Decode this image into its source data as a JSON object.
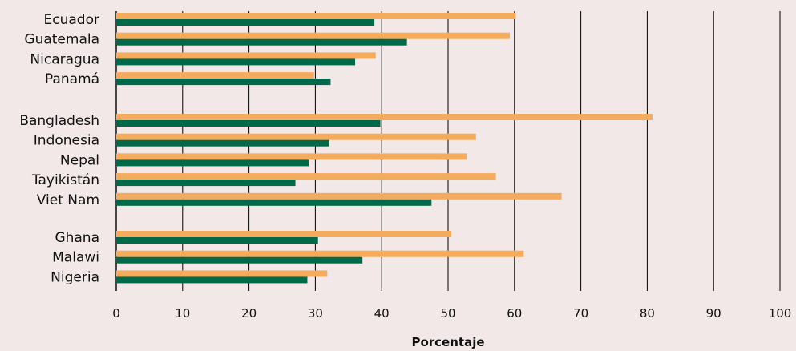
{
  "chart_data": {
    "type": "bar",
    "orientation": "horizontal",
    "xlabel": "Porcentaje",
    "ylabel": "",
    "xlim": [
      0,
      100
    ],
    "xticks": [
      0,
      10,
      20,
      30,
      40,
      50,
      60,
      70,
      80,
      90,
      100
    ],
    "grid": true,
    "colors": {
      "orange": "#f5ab5e",
      "green": "#00694a",
      "background": "#f1e8e7",
      "grid": "#000000"
    },
    "groups": [
      {
        "categories": [
          {
            "label": "Ecuador",
            "orange": 60.2,
            "green": 38.9
          },
          {
            "label": "Guatemala",
            "orange": 59.3,
            "green": 43.8
          },
          {
            "label": "Nicaragua",
            "orange": 39.1,
            "green": 36.0
          },
          {
            "label": "Panamá",
            "orange": 29.8,
            "green": 32.3
          }
        ]
      },
      {
        "categories": [
          {
            "label": "Bangladesh",
            "orange": 80.8,
            "green": 39.8
          },
          {
            "label": "Indonesia",
            "orange": 54.2,
            "green": 32.1
          },
          {
            "label": "Nepal",
            "orange": 52.8,
            "green": 29.0
          },
          {
            "label": "Tayikistán",
            "orange": 57.2,
            "green": 27.0
          },
          {
            "label": "Viet Nam",
            "orange": 67.1,
            "green": 47.5
          }
        ]
      },
      {
        "categories": [
          {
            "label": "Ghana",
            "orange": 50.5,
            "green": 30.4
          },
          {
            "label": "Malawi",
            "orange": 61.4,
            "green": 37.1
          },
          {
            "label": "Nigeria",
            "orange": 31.8,
            "green": 28.8
          }
        ]
      }
    ]
  }
}
